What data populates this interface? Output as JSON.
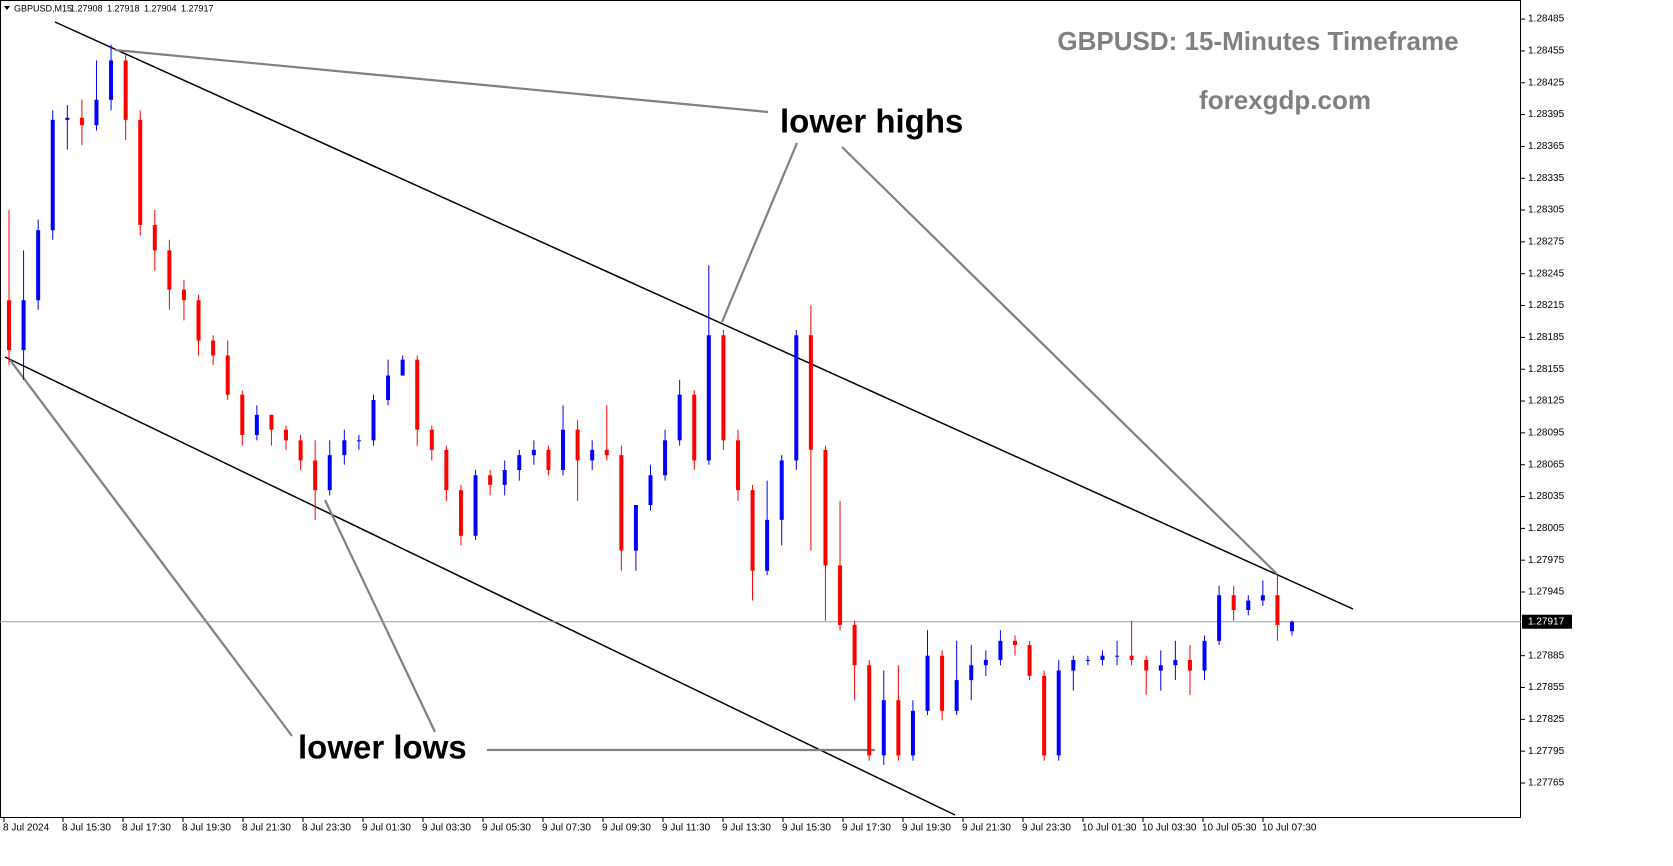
{
  "chart_data": {
    "type": "candlestick",
    "symbol": "GBPUSD,M15",
    "title": "GBPUSD: 15-Minutes Timeframe",
    "subtitle": "forexgdp.com",
    "annotations": [
      "lower highs",
      "lower lows"
    ],
    "up_color": "#0000ff",
    "down_color": "#ff0000",
    "price_line_color": "#8fa3b5",
    "x_labels": [
      "8 Jul 2024",
      "8 Jul 15:30",
      "8 Jul 17:30",
      "8 Jul 19:30",
      "8 Jul 21:30",
      "8 Jul 23:30",
      "9 Jul 01:30",
      "9 Jul 03:30",
      "9 Jul 05:30",
      "9 Jul 07:30",
      "9 Jul 09:30",
      "9 Jul 11:30",
      "9 Jul 13:30",
      "9 Jul 15:30",
      "9 Jul 17:30",
      "9 Jul 19:30",
      "9 Jul 21:30",
      "9 Jul 23:30",
      "10 Jul 01:30",
      "10 Jul 03:30",
      "10 Jul 05:30",
      "10 Jul 07:30"
    ],
    "ylim": [
      1.27732,
      1.28503
    ],
    "yticks": [
      1.28485,
      1.28455,
      1.28425,
      1.28395,
      1.28365,
      1.28335,
      1.28305,
      1.28275,
      1.28245,
      1.28215,
      1.28185,
      1.28155,
      1.28125,
      1.28095,
      1.28065,
      1.28035,
      1.28005,
      1.27975,
      1.27945,
      1.27885,
      1.27855,
      1.27825,
      1.27795,
      1.27765
    ],
    "open": [
      1.2822,
      1.28173,
      1.2822,
      1.28286,
      1.2839,
      1.28392,
      1.28385,
      1.28409,
      1.28446,
      1.2839,
      1.28291,
      1.28267,
      1.2823,
      1.2822,
      1.28182,
      1.28168,
      1.28131,
      1.28093,
      1.28112,
      1.28098,
      1.28088,
      1.28069,
      1.28041,
      1.28074,
      1.28088,
      1.28088,
      1.28126,
      1.28149,
      1.28164,
      1.28098,
      1.28079,
      1.28041,
      1.27998,
      1.28055,
      1.28046,
      1.2806,
      1.28074,
      1.28079,
      1.2806,
      1.28098,
      1.28069,
      1.28079,
      1.28074,
      1.27984,
      1.28027,
      1.28055,
      1.28088,
      1.28131,
      1.28069,
      1.28187,
      1.28088,
      1.28041,
      1.27965,
      1.28013,
      1.28069,
      1.28187,
      1.28079,
      1.2797,
      1.27914,
      1.27876,
      1.27791,
      1.27843,
      1.27791,
      1.27833,
      1.27885,
      1.27833,
      1.27862,
      1.27876,
      1.27881,
      1.27899,
      1.27895,
      1.27866,
      1.27791,
      1.27871,
      1.27881,
      1.27881,
      1.27885,
      1.27885,
      1.27881,
      1.27871,
      1.27876,
      1.27881,
      1.27871,
      1.27899,
      1.27942,
      1.27928,
      1.27937,
      1.27942,
      1.27908
    ],
    "high": [
      1.28305,
      1.28267,
      1.28296,
      1.28399,
      1.28404,
      1.28409,
      1.28446,
      1.28461,
      1.28451,
      1.28399,
      1.28305,
      1.28277,
      1.28239,
      1.28225,
      1.28187,
      1.28182,
      1.28135,
      1.28121,
      1.28112,
      1.28102,
      1.28093,
      1.28088,
      1.28088,
      1.28098,
      1.28093,
      1.28131,
      1.28164,
      1.28168,
      1.28168,
      1.28102,
      1.28083,
      1.28046,
      1.2806,
      1.2806,
      1.28069,
      1.28079,
      1.28088,
      1.28083,
      1.28121,
      1.28107,
      1.28088,
      1.28121,
      1.28083,
      1.28027,
      1.28065,
      1.28098,
      1.28145,
      1.28135,
      1.28253,
      1.28192,
      1.28098,
      1.28046,
      1.2805,
      1.28074,
      1.28192,
      1.28215,
      1.28083,
      1.28031,
      1.27918,
      1.27881,
      1.27871,
      1.27876,
      1.27843,
      1.27909,
      1.2789,
      1.27899,
      1.27895,
      1.2789,
      1.27909,
      1.27904,
      1.27899,
      1.27871,
      1.27881,
      1.27885,
      1.27885,
      1.2789,
      1.27899,
      1.27918,
      1.27885,
      1.2789,
      1.27899,
      1.27895,
      1.27904,
      1.27951,
      1.27951,
      1.27942,
      1.27956,
      1.27961,
      1.27918
    ],
    "low": [
      1.28159,
      1.28145,
      1.28211,
      1.28277,
      1.28362,
      1.28366,
      1.2838,
      1.28399,
      1.28371,
      1.28281,
      1.28248,
      1.28211,
      1.28201,
      1.28168,
      1.28159,
      1.28126,
      1.28083,
      1.28088,
      1.28083,
      1.28079,
      1.2806,
      1.28013,
      1.28036,
      1.28065,
      1.28079,
      1.28083,
      1.28121,
      1.28149,
      1.28083,
      1.28069,
      1.28031,
      1.27989,
      1.27994,
      1.28036,
      1.28036,
      1.2805,
      1.28065,
      1.28055,
      1.28055,
      1.28031,
      1.2806,
      1.28069,
      1.27965,
      1.27965,
      1.28022,
      1.2805,
      1.28083,
      1.2806,
      1.28065,
      1.28079,
      1.28031,
      1.27937,
      1.27961,
      1.27989,
      1.2806,
      1.27984,
      1.27918,
      1.27909,
      1.27843,
      1.27786,
      1.27782,
      1.27786,
      1.27786,
      1.27829,
      1.27824,
      1.27829,
      1.27843,
      1.27866,
      1.27876,
      1.27885,
      1.27862,
      1.27786,
      1.27786,
      1.27852,
      1.27876,
      1.27876,
      1.27876,
      1.27876,
      1.27848,
      1.27852,
      1.27862,
      1.27848,
      1.27862,
      1.27895,
      1.27918,
      1.27923,
      1.27932,
      1.27899,
      1.27904
    ],
    "close": [
      1.28173,
      1.2822,
      1.28286,
      1.2839,
      1.28392,
      1.28385,
      1.28409,
      1.28446,
      1.2839,
      1.28291,
      1.28267,
      1.2823,
      1.2822,
      1.28182,
      1.28168,
      1.28131,
      1.28093,
      1.28112,
      1.28098,
      1.28088,
      1.28069,
      1.28041,
      1.28074,
      1.28088,
      1.28088,
      1.28126,
      1.28149,
      1.28164,
      1.28098,
      1.28079,
      1.28041,
      1.27998,
      1.28055,
      1.28046,
      1.2806,
      1.28074,
      1.28079,
      1.2806,
      1.28098,
      1.28069,
      1.28079,
      1.28074,
      1.27984,
      1.28027,
      1.28055,
      1.28088,
      1.28131,
      1.28069,
      1.28187,
      1.28088,
      1.28041,
      1.27965,
      1.28013,
      1.28069,
      1.28187,
      1.28079,
      1.2797,
      1.27914,
      1.27876,
      1.27791,
      1.27843,
      1.27791,
      1.27833,
      1.27885,
      1.27833,
      1.27862,
      1.27876,
      1.27881,
      1.27899,
      1.27895,
      1.27866,
      1.27791,
      1.27871,
      1.27881,
      1.27881,
      1.27885,
      1.27885,
      1.27881,
      1.27871,
      1.27876,
      1.27881,
      1.27871,
      1.27899,
      1.27942,
      1.27928,
      1.27937,
      1.27942,
      1.27914,
      1.27917
    ]
  }
}
